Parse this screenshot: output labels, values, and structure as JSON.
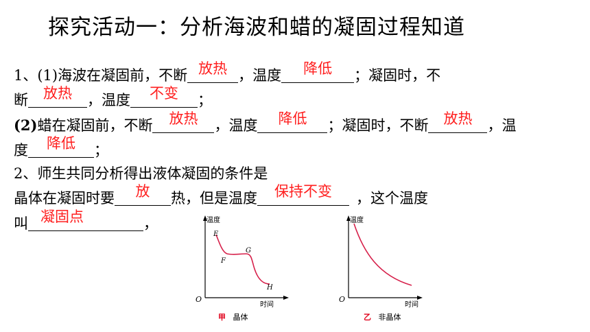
{
  "title": "探究活动一：分析海波和蜡的凝固过程知道",
  "q1": {
    "line1_a": "1、(1)海波在凝固前，不断",
    "ans1": "放热",
    "line1_b": "，温度",
    "ans2": "降低",
    "line1_c": "；凝固时，不",
    "line2_a": "断",
    "ans3": "放热",
    "line2_b": "，温度",
    "ans4": "不变",
    "line2_c": "；",
    "line3_a": "(2)",
    "line3_b": "蜡在凝固前，不断",
    "ans5": "放热",
    "line3_c": "，温度",
    "ans6": "降低",
    "line3_d": "；凝固时，不断",
    "ans7": "放热",
    "line3_e": "，温",
    "line4_a": "度",
    "ans8": "降低",
    "line4_b": "；"
  },
  "q2": {
    "line1": "2、师生共同分析得出液体凝固的条件是",
    "line2_a": "晶体在凝固时要",
    "ans1": "放",
    "line2_b": "热，但是温度",
    "ans2": "保持不变",
    "line2_c": "，这个温度",
    "line3_a": "叫",
    "ans3": "凝固点",
    "line3_b": "，"
  },
  "graph_a": {
    "ylabel": "温度",
    "xlabel": "时间",
    "origin": "O",
    "points": [
      "E",
      "F",
      "G",
      "H"
    ],
    "caption_mark": "甲",
    "caption": "晶体"
  },
  "graph_b": {
    "ylabel": "温度",
    "xlabel": "时间",
    "origin": "O",
    "caption_mark": "乙",
    "caption": "非晶体"
  },
  "colors": {
    "answer": "#ff1e1e",
    "curve": "#d6204a",
    "caption_mark": "#e0001a"
  }
}
